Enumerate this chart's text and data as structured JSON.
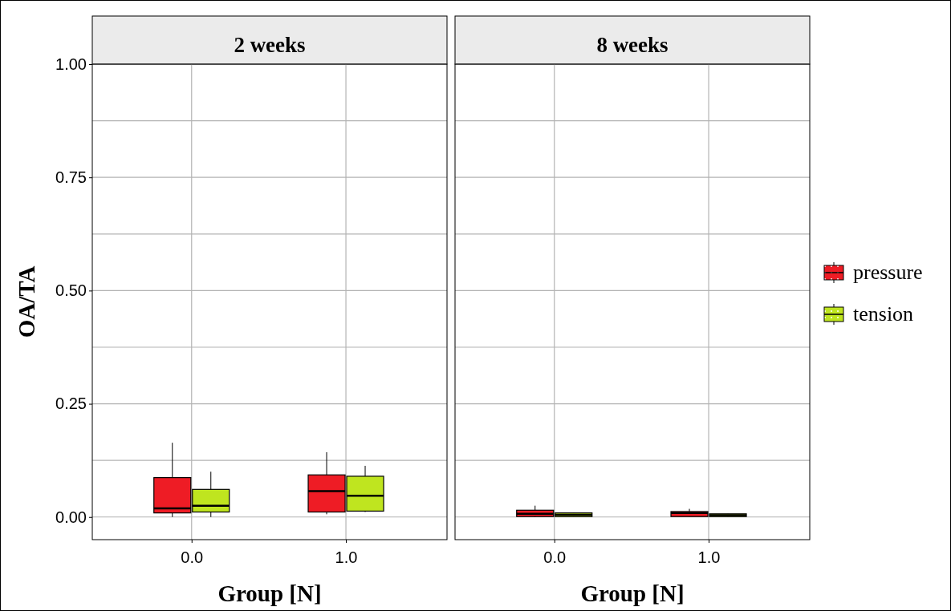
{
  "chart_data": [
    {
      "type": "box",
      "title": "2 weeks",
      "xlabel": "Group [N]",
      "ylabel": "OA/TA",
      "categories": [
        "0.0",
        "1.0"
      ],
      "ylim": [
        -0.05,
        1.0
      ],
      "yticks": [
        {
          "value": 0,
          "label": "0.00"
        },
        {
          "value": 0.125,
          "label": null
        },
        {
          "value": 0.25,
          "label": "0.25"
        },
        {
          "value": 0.375,
          "label": null
        },
        {
          "value": 0.5,
          "label": "0.50"
        },
        {
          "value": 0.625,
          "label": null
        },
        {
          "value": 0.75,
          "label": "0.75"
        },
        {
          "value": 0.875,
          "label": null
        },
        {
          "value": 1.0,
          "label": "1.00"
        }
      ],
      "grid": true,
      "legend": false,
      "series": [
        {
          "color": "#ee1c25",
          "boxes": [
            {
              "low": 0.0,
              "q1": 0.009,
              "median": 0.019,
              "q3": 0.087,
              "high": 0.164
            },
            {
              "low": 0.006,
              "q1": 0.011,
              "median": 0.057,
              "q3": 0.093,
              "high": 0.143
            }
          ]
        },
        {
          "color": "#bfe51f",
          "boxes": [
            {
              "low": 0.0,
              "q1": 0.011,
              "median": 0.025,
              "q3": 0.061,
              "high": 0.1
            },
            {
              "low": 0.011,
              "q1": 0.013,
              "median": 0.047,
              "q3": 0.09,
              "high": 0.113
            }
          ]
        }
      ]
    },
    {
      "type": "box",
      "title": "8 weeks",
      "xlabel": "Group [N]",
      "categories": [
        "0.0",
        "1.0"
      ],
      "ylim": [
        -0.05,
        1.0
      ],
      "yticks": [
        0,
        0.125,
        0.25,
        0.375,
        0.5,
        0.625,
        0.75,
        0.875,
        1.0
      ],
      "grid": true,
      "tick_labels": "x",
      "legend": "right",
      "series": [
        {
          "name": "pressure",
          "color": "#ee1c25",
          "boxes": [
            {
              "low": 0.0,
              "q1": 0.001,
              "median": 0.007,
              "q3": 0.015,
              "high": 0.025
            },
            {
              "low": 0.001,
              "q1": 0.001,
              "median": 0.009,
              "q3": 0.012,
              "high": 0.018
            }
          ]
        },
        {
          "name": "tension",
          "color": "#bfe51f",
          "boxes": [
            {
              "low": 0.001,
              "q1": 0.001,
              "median": 0.005,
              "q3": 0.009,
              "high": 0.009
            },
            {
              "low": 0.001,
              "q1": 0.001,
              "median": 0.004,
              "q3": 0.007,
              "high": 0.007
            }
          ]
        }
      ]
    }
  ]
}
